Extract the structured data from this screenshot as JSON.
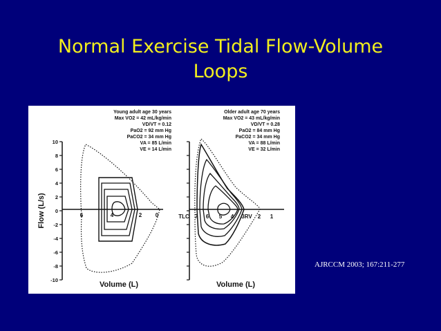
{
  "slide": {
    "title_line1": "Normal Exercise Tidal Flow-Volume",
    "title_line2": "Loops",
    "citation": "AJRCCM 2003; 167:211-277",
    "colors": {
      "background": "#00007a",
      "title": "#f2ef1e",
      "citation": "#ffffff",
      "figure_bg": "#ffffff"
    }
  },
  "figure": {
    "y_axis_label": "Flow (L/s)",
    "y_ticks": [
      "10",
      "8",
      "6",
      "4",
      "2",
      "0",
      "-2",
      "-4",
      "-6",
      "-8",
      "-10"
    ],
    "young": {
      "stats": [
        "Young adult age 30 years",
        "Max VO2 = 42 mL/kg/min",
        "VD/VT = 0.12",
        "PaO2 = 92 mm Hg",
        "PaCO2 = 34 mm Hg",
        "VA = 85 L/min",
        "VE = 14 L/min"
      ],
      "x_ticks": [
        "6",
        "4",
        "2",
        "0"
      ],
      "x_label": "Volume (L)"
    },
    "older": {
      "stats": [
        "Older adult age 70 years",
        "Max VO2 = 43 mL/kg/min",
        "VD/VT = 0.28",
        "PaO2 = 84 mm Hg",
        "PaCO2 = 34 mm Hg",
        "VA = 88 L/min",
        "VE = 32 L/min"
      ],
      "x_ticks": [
        "TLC",
        "7",
        "6",
        "5",
        "4",
        "3RV",
        "2",
        "1"
      ],
      "x_label": "Volume (L)"
    }
  }
}
